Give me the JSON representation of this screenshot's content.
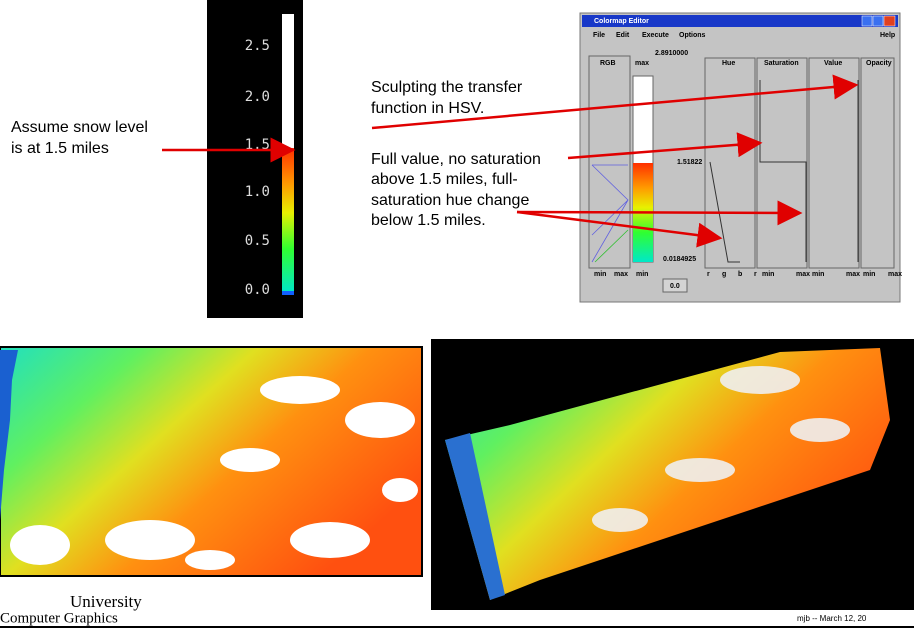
{
  "colorbar": {
    "ticks": [
      "2.5",
      "2.0",
      "1.5",
      "1.0",
      "0.5",
      "0.0"
    ]
  },
  "annotations": {
    "snow": [
      "Assume snow level",
      "is at 1.5 miles"
    ],
    "sculpt": [
      "Sculpting the transfer",
      "function in HSV."
    ],
    "full": [
      "Full value, no saturation",
      "above 1.5 miles, full-",
      "saturation hue change",
      "below 1.5 miles."
    ]
  },
  "editor": {
    "title": "Colormap Editor",
    "menu": [
      "File",
      "Edit",
      "Execute",
      "Options",
      "Help"
    ],
    "columns": [
      "RGB",
      "max",
      "Hue",
      "Saturation",
      "Value",
      "Opacity"
    ],
    "max_value": "2.8910000",
    "mid_value": "1.51822",
    "min_value": "0.0184925",
    "bottom_labels": [
      "min",
      "max",
      "min",
      "r",
      "g",
      "b",
      "r",
      "min",
      "max",
      "min",
      "max",
      "min",
      "max"
    ],
    "button": "0.0"
  },
  "footer": {
    "university": "University",
    "department": "Computer Graphics",
    "date": "mjb -- March 12, 20"
  }
}
